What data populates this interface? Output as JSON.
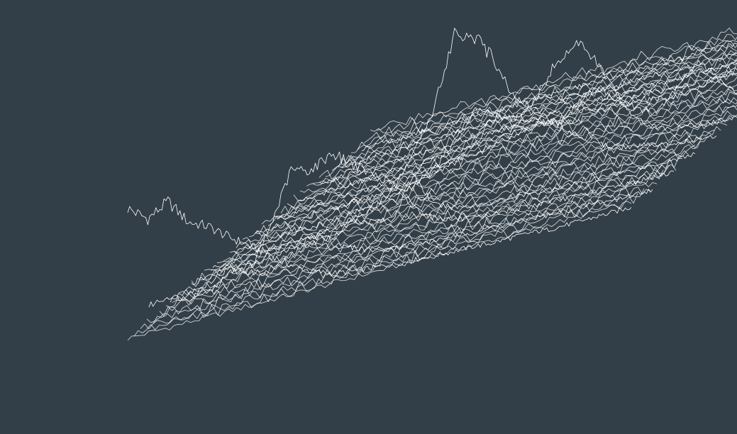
{
  "chart_data": {
    "type": "line",
    "style": "3d-ridgeline",
    "title": "",
    "xlabel": "",
    "ylabel": "",
    "zlabel": "",
    "axes_visible": false,
    "grid": false,
    "legend": "none",
    "colors": {
      "background": "#333f48",
      "line": "#ffffff"
    },
    "x": [
      0,
      4,
      8,
      12,
      16,
      20,
      24,
      28,
      32,
      36,
      40,
      44,
      48,
      52,
      56,
      60,
      64,
      68,
      72,
      76,
      80,
      84,
      88,
      92,
      96,
      100
    ],
    "ylim": [
      0,
      1
    ],
    "series": [
      {
        "values": [
          0.7,
          0.62,
          0.68,
          0.55,
          0.5,
          0.42,
          0.35,
          0.28,
          0.2,
          0.14,
          0.1,
          0.08,
          0.07,
          0.06,
          0.05,
          0.05,
          0.04,
          0.04,
          0.03,
          0.03,
          0.03,
          0.02,
          0.02,
          0.02,
          0.02,
          0.02
        ]
      },
      {
        "values": [
          0.12,
          0.14,
          0.1,
          0.16,
          0.2,
          0.15,
          0.12,
          0.18,
          0.22,
          0.17,
          0.14,
          0.1,
          0.08,
          0.07,
          0.06,
          0.06,
          0.05,
          0.05,
          0.04,
          0.04,
          0.03,
          0.03,
          0.03,
          0.02,
          0.02,
          0.02
        ]
      },
      {
        "values": [
          0.06,
          0.08,
          0.05,
          0.12,
          0.1,
          0.3,
          0.55,
          0.52,
          0.58,
          0.5,
          0.42,
          0.35,
          0.2,
          0.12,
          0.08,
          0.06,
          0.05,
          0.05,
          0.04,
          0.04,
          0.03,
          0.03,
          0.03,
          0.02,
          0.02,
          0.02
        ]
      },
      {
        "values": [
          0.05,
          0.07,
          0.09,
          0.06,
          0.08,
          0.1,
          0.12,
          0.09,
          0.15,
          0.12,
          0.1,
          0.3,
          0.12,
          0.08,
          0.06,
          0.05,
          0.05,
          0.04,
          0.04,
          0.03,
          0.03,
          0.03,
          0.02,
          0.02,
          0.02,
          0.02
        ]
      },
      {
        "values": [
          0.04,
          0.05,
          0.06,
          0.05,
          0.07,
          0.06,
          0.08,
          0.1,
          0.12,
          0.2,
          0.35,
          0.55,
          0.9,
          0.85,
          0.7,
          0.48,
          0.4,
          0.3,
          0.22,
          0.15,
          0.1,
          0.08,
          0.06,
          0.04,
          0.03,
          0.02
        ]
      },
      {
        "values": [
          0.03,
          0.04,
          0.05,
          0.06,
          0.05,
          0.06,
          0.07,
          0.08,
          0.1,
          0.12,
          0.18,
          0.3,
          0.42,
          0.36,
          0.28,
          0.4,
          0.55,
          0.62,
          0.5,
          0.3,
          0.15,
          0.08,
          0.05,
          0.04,
          0.03,
          0.02
        ]
      },
      {
        "values": [
          0.03,
          0.04,
          0.04,
          0.05,
          0.05,
          0.06,
          0.06,
          0.07,
          0.08,
          0.1,
          0.12,
          0.2,
          0.3,
          0.26,
          0.22,
          0.18,
          0.25,
          0.3,
          0.22,
          0.14,
          0.1,
          0.2,
          0.3,
          0.18,
          0.08,
          0.03
        ]
      },
      {
        "values": [
          0.02,
          0.03,
          0.03,
          0.04,
          0.04,
          0.05,
          0.05,
          0.06,
          0.06,
          0.07,
          0.08,
          0.1,
          0.12,
          0.14,
          0.12,
          0.1,
          0.12,
          0.14,
          0.12,
          0.1,
          0.09,
          0.1,
          0.14,
          0.12,
          0.08,
          0.04
        ]
      },
      {
        "values": [
          0.02,
          0.02,
          0.03,
          0.03,
          0.03,
          0.04,
          0.04,
          0.05,
          0.05,
          0.06,
          0.06,
          0.07,
          0.08,
          0.08,
          0.09,
          0.08,
          0.08,
          0.09,
          0.08,
          0.07,
          0.07,
          0.08,
          0.09,
          0.08,
          0.06,
          0.03
        ]
      },
      {
        "values": [
          0.01,
          0.02,
          0.02,
          0.02,
          0.03,
          0.03,
          0.03,
          0.04,
          0.04,
          0.04,
          0.05,
          0.05,
          0.05,
          0.06,
          0.06,
          0.06,
          0.06,
          0.06,
          0.06,
          0.05,
          0.05,
          0.06,
          0.06,
          0.05,
          0.04,
          0.02
        ]
      },
      {
        "values": [
          0.01,
          0.01,
          0.02,
          0.02,
          0.02,
          0.02,
          0.03,
          0.03,
          0.03,
          0.03,
          0.04,
          0.04,
          0.04,
          0.04,
          0.04,
          0.05,
          0.04,
          0.04,
          0.04,
          0.04,
          0.04,
          0.04,
          0.04,
          0.04,
          0.03,
          0.02
        ]
      },
      {
        "values": [
          0.01,
          0.01,
          0.01,
          0.02,
          0.02,
          0.02,
          0.02,
          0.02,
          0.02,
          0.03,
          0.03,
          0.03,
          0.03,
          0.03,
          0.03,
          0.03,
          0.03,
          0.03,
          0.03,
          0.03,
          0.03,
          0.03,
          0.03,
          0.03,
          0.02,
          0.01
        ]
      }
    ]
  }
}
